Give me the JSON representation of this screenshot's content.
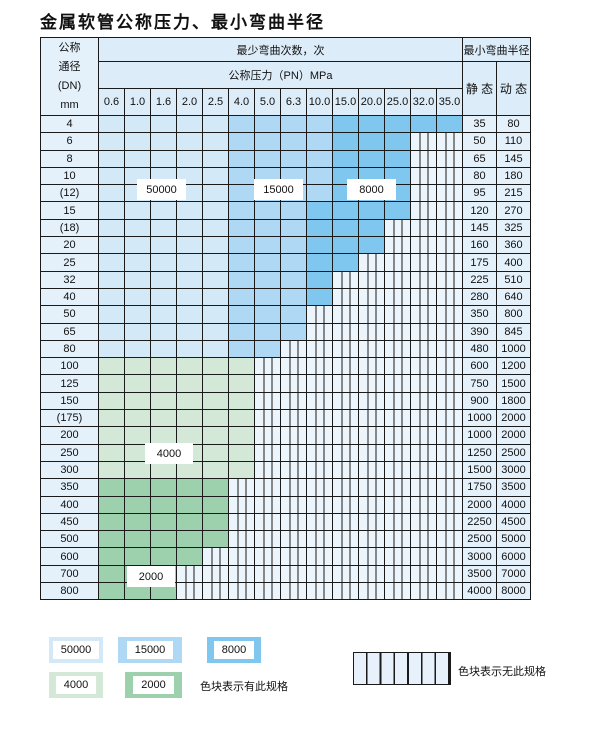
{
  "title": "金属软管公称压力、最小弯曲半径",
  "header": {
    "dn_lines": [
      "公称",
      "通径",
      "(DN)",
      "mm"
    ],
    "cycles_group": "最少弯曲次数，次",
    "pressure_group": "公称压力（PN）MPa",
    "radius_group": "最小弯曲半径",
    "static": "静 态",
    "dynamic": "动 态",
    "pressures": [
      "0.6",
      "1.0",
      "1.6",
      "2.0",
      "2.5",
      "4.0",
      "5.0",
      "6.3",
      "10.0",
      "15.0",
      "20.0",
      "25.0",
      "32.0",
      "35.0"
    ]
  },
  "colors": {
    "50000": "#d3e9f8",
    "15000": "#aed8f3",
    "8000": "#7fc7ee",
    "4000": "#d3e8d7",
    "2000": "#9dd1ad"
  },
  "rows": [
    {
      "dn": "4",
      "static": "35",
      "dynamic": "80",
      "cycles": [
        50000,
        50000,
        50000,
        50000,
        50000,
        15000,
        15000,
        15000,
        15000,
        8000,
        8000,
        8000,
        8000,
        8000
      ]
    },
    {
      "dn": "6",
      "static": "50",
      "dynamic": "110",
      "cycles": [
        50000,
        50000,
        50000,
        50000,
        50000,
        15000,
        15000,
        15000,
        15000,
        8000,
        8000,
        8000,
        null,
        null
      ]
    },
    {
      "dn": "8",
      "static": "65",
      "dynamic": "145",
      "cycles": [
        50000,
        50000,
        50000,
        50000,
        50000,
        15000,
        15000,
        15000,
        15000,
        8000,
        8000,
        8000,
        null,
        null
      ]
    },
    {
      "dn": "10",
      "static": "80",
      "dynamic": "180",
      "cycles": [
        50000,
        50000,
        50000,
        50000,
        50000,
        15000,
        15000,
        15000,
        15000,
        8000,
        8000,
        8000,
        null,
        null
      ]
    },
    {
      "dn": "(12)",
      "static": "95",
      "dynamic": "215",
      "cycles": [
        50000,
        50000,
        50000,
        50000,
        50000,
        15000,
        15000,
        15000,
        15000,
        8000,
        8000,
        8000,
        null,
        null
      ]
    },
    {
      "dn": "15",
      "static": "120",
      "dynamic": "270",
      "cycles": [
        50000,
        50000,
        50000,
        50000,
        50000,
        15000,
        15000,
        15000,
        8000,
        8000,
        8000,
        8000,
        null,
        null
      ]
    },
    {
      "dn": "(18)",
      "static": "145",
      "dynamic": "325",
      "cycles": [
        50000,
        50000,
        50000,
        50000,
        50000,
        15000,
        15000,
        15000,
        8000,
        8000,
        8000,
        null,
        null,
        null
      ]
    },
    {
      "dn": "20",
      "static": "160",
      "dynamic": "360",
      "cycles": [
        50000,
        50000,
        50000,
        50000,
        50000,
        15000,
        15000,
        15000,
        8000,
        8000,
        8000,
        null,
        null,
        null
      ]
    },
    {
      "dn": "25",
      "static": "175",
      "dynamic": "400",
      "cycles": [
        50000,
        50000,
        50000,
        50000,
        50000,
        15000,
        15000,
        15000,
        8000,
        8000,
        null,
        null,
        null,
        null
      ]
    },
    {
      "dn": "32",
      "static": "225",
      "dynamic": "510",
      "cycles": [
        50000,
        50000,
        50000,
        50000,
        50000,
        15000,
        15000,
        15000,
        8000,
        null,
        null,
        null,
        null,
        null
      ]
    },
    {
      "dn": "40",
      "static": "280",
      "dynamic": "640",
      "cycles": [
        50000,
        50000,
        50000,
        50000,
        50000,
        15000,
        15000,
        15000,
        8000,
        null,
        null,
        null,
        null,
        null
      ]
    },
    {
      "dn": "50",
      "static": "350",
      "dynamic": "800",
      "cycles": [
        50000,
        50000,
        50000,
        50000,
        50000,
        15000,
        15000,
        15000,
        null,
        null,
        null,
        null,
        null,
        null
      ]
    },
    {
      "dn": "65",
      "static": "390",
      "dynamic": "845",
      "cycles": [
        50000,
        50000,
        50000,
        50000,
        50000,
        15000,
        15000,
        15000,
        null,
        null,
        null,
        null,
        null,
        null
      ]
    },
    {
      "dn": "80",
      "static": "480",
      "dynamic": "1000",
      "cycles": [
        50000,
        50000,
        50000,
        50000,
        50000,
        15000,
        15000,
        null,
        null,
        null,
        null,
        null,
        null,
        null
      ]
    },
    {
      "dn": "100",
      "static": "600",
      "dynamic": "1200",
      "cycles": [
        4000,
        4000,
        4000,
        4000,
        4000,
        4000,
        null,
        null,
        null,
        null,
        null,
        null,
        null,
        null
      ]
    },
    {
      "dn": "125",
      "static": "750",
      "dynamic": "1500",
      "cycles": [
        4000,
        4000,
        4000,
        4000,
        4000,
        4000,
        null,
        null,
        null,
        null,
        null,
        null,
        null,
        null
      ]
    },
    {
      "dn": "150",
      "static": "900",
      "dynamic": "1800",
      "cycles": [
        4000,
        4000,
        4000,
        4000,
        4000,
        4000,
        null,
        null,
        null,
        null,
        null,
        null,
        null,
        null
      ]
    },
    {
      "dn": "(175)",
      "static": "1000",
      "dynamic": "2000",
      "cycles": [
        4000,
        4000,
        4000,
        4000,
        4000,
        4000,
        null,
        null,
        null,
        null,
        null,
        null,
        null,
        null
      ]
    },
    {
      "dn": "200",
      "static": "1000",
      "dynamic": "2000",
      "cycles": [
        4000,
        4000,
        4000,
        4000,
        4000,
        4000,
        null,
        null,
        null,
        null,
        null,
        null,
        null,
        null
      ]
    },
    {
      "dn": "250",
      "static": "1250",
      "dynamic": "2500",
      "cycles": [
        4000,
        4000,
        4000,
        4000,
        4000,
        4000,
        null,
        null,
        null,
        null,
        null,
        null,
        null,
        null
      ]
    },
    {
      "dn": "300",
      "static": "1500",
      "dynamic": "3000",
      "cycles": [
        4000,
        4000,
        4000,
        4000,
        4000,
        4000,
        null,
        null,
        null,
        null,
        null,
        null,
        null,
        null
      ]
    },
    {
      "dn": "350",
      "static": "1750",
      "dynamic": "3500",
      "cycles": [
        2000,
        2000,
        2000,
        2000,
        2000,
        null,
        null,
        null,
        null,
        null,
        null,
        null,
        null,
        null
      ]
    },
    {
      "dn": "400",
      "static": "2000",
      "dynamic": "4000",
      "cycles": [
        2000,
        2000,
        2000,
        2000,
        2000,
        null,
        null,
        null,
        null,
        null,
        null,
        null,
        null,
        null
      ]
    },
    {
      "dn": "450",
      "static": "2250",
      "dynamic": "4500",
      "cycles": [
        2000,
        2000,
        2000,
        2000,
        2000,
        null,
        null,
        null,
        null,
        null,
        null,
        null,
        null,
        null
      ]
    },
    {
      "dn": "500",
      "static": "2500",
      "dynamic": "5000",
      "cycles": [
        2000,
        2000,
        2000,
        2000,
        2000,
        null,
        null,
        null,
        null,
        null,
        null,
        null,
        null,
        null
      ]
    },
    {
      "dn": "600",
      "static": "3000",
      "dynamic": "6000",
      "cycles": [
        2000,
        2000,
        2000,
        2000,
        null,
        null,
        null,
        null,
        null,
        null,
        null,
        null,
        null,
        null
      ]
    },
    {
      "dn": "700",
      "static": "3500",
      "dynamic": "7000",
      "cycles": [
        2000,
        2000,
        2000,
        null,
        null,
        null,
        null,
        null,
        null,
        null,
        null,
        null,
        null,
        null
      ]
    },
    {
      "dn": "800",
      "static": "4000",
      "dynamic": "8000",
      "cycles": [
        2000,
        2000,
        2000,
        null,
        null,
        null,
        null,
        null,
        null,
        null,
        null,
        null,
        null,
        null
      ]
    }
  ],
  "region_labels": [
    "50000",
    "15000",
    "8000",
    "4000",
    "2000"
  ],
  "legend": {
    "items": [
      "50000",
      "15000",
      "8000",
      "4000",
      "2000"
    ],
    "available_text": "色块表示有此规格",
    "unavailable_text": "色块表示无此规格"
  }
}
